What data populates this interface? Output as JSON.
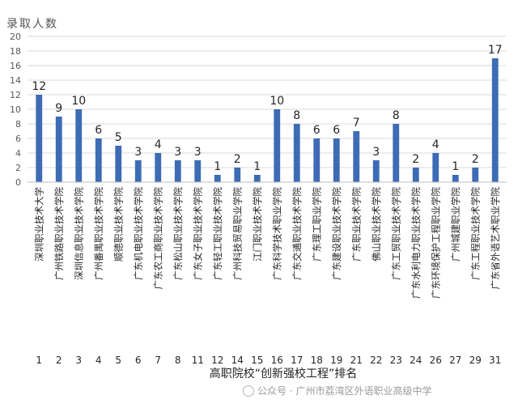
{
  "chart_data": {
    "type": "bar",
    "ylabel": "录取人数",
    "xlabel": "高职院校“创新强校工程”排名",
    "ylim": [
      0,
      20
    ],
    "yticks": [
      0,
      2,
      4,
      6,
      8,
      10,
      12,
      14,
      16,
      18,
      20
    ],
    "grid": true,
    "bar_color": "#3d6cb5",
    "categories": [
      "深圳职业技术大学",
      "广州铁路职业技术学院",
      "深圳信息职业技术学院",
      "广州番禺职业技术学院",
      "顺德职业技术学院",
      "广东机电职业技术学院",
      "广东农工商职业技术学院",
      "广东松山职业技术学院",
      "广东女子职业技术学院",
      "广东轻工职业技术学院",
      "广州科技贸易职业学院",
      "江门职业技术学院",
      "广东科学技术职业学院",
      "广东交通职业技术学院",
      "广东理工职业学院",
      "广东建设职业技术学院",
      "广东职业技术学院",
      "佛山职业技术学院",
      "广东工贸职业技术学院",
      "广东水利电力职业技术学院",
      "广东环境保护工程职业学院",
      "广州城建职业学院",
      "广东工程职业技术学院",
      "广东省外语艺术职业学院"
    ],
    "ranks": [
      "1",
      "2",
      "3",
      "4",
      "5",
      "6",
      "7",
      "8",
      "11",
      "12",
      "14",
      "15",
      "16",
      "17",
      "18",
      "19",
      "21",
      "22",
      "23",
      "24",
      "26",
      "27",
      "29",
      "31"
    ],
    "values": [
      12,
      9,
      10,
      6,
      5,
      3,
      4,
      3,
      3,
      1,
      2,
      1,
      10,
      8,
      6,
      6,
      7,
      3,
      8,
      2,
      4,
      1,
      2,
      17
    ]
  },
  "watermark": "公众号 · 广州市荔湾区外语职业高级中学"
}
